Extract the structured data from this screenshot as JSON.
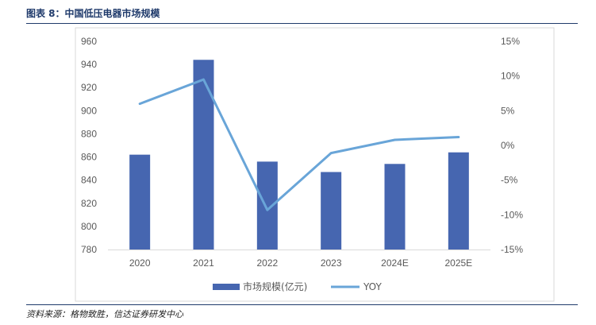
{
  "figure": {
    "title": "图表 8：中国低压电器市场规模",
    "source": "资料来源：格物致胜，信达证券研发中心"
  },
  "chart_data": {
    "type": "bar",
    "categories": [
      "2020",
      "2021",
      "2022",
      "2023",
      "2024E",
      "2025E"
    ],
    "series": [
      {
        "name": "市场规模(亿元)",
        "type": "bar",
        "axis": "left",
        "color": "#4666b0",
        "values": [
          862,
          944,
          856,
          847,
          854,
          864
        ]
      },
      {
        "name": "YOY",
        "type": "line",
        "axis": "right",
        "color": "#69a5d8",
        "values": [
          0.06,
          0.095,
          -0.093,
          -0.011,
          0.008,
          0.012
        ]
      }
    ],
    "y_left": {
      "min": 780,
      "max": 960,
      "step": 20,
      "ticks": [
        "960",
        "940",
        "920",
        "900",
        "880",
        "860",
        "840",
        "820",
        "800",
        "780"
      ]
    },
    "y_right": {
      "min": -0.15,
      "max": 0.15,
      "step": 0.05,
      "ticks": [
        "15%",
        "10%",
        "5%",
        "0%",
        "-5%",
        "-10%",
        "-15%"
      ]
    },
    "grid": false,
    "legend_position": "bottom"
  }
}
